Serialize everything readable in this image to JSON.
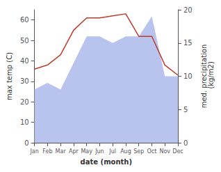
{
  "chart_data": {
    "type": "line",
    "categories": [
      "Jan",
      "Feb",
      "Mar",
      "Apr",
      "May",
      "Jun",
      "Jul",
      "Aug",
      "Sep",
      "Oct",
      "Nov",
      "Dec"
    ],
    "xlabel": "date (month)",
    "ylabel": "max temp (C)",
    "y2label": "med. precipitation\n (kg/m2)",
    "series": [
      {
        "type": "area",
        "axis": "y2",
        "color": "#b8c4ee",
        "values": [
          8,
          9,
          8,
          12,
          16,
          16,
          15,
          16,
          16,
          19,
          10,
          10
        ]
      },
      {
        "type": "line",
        "axis": "y",
        "color": "#c0392b",
        "values": [
          36,
          38,
          43,
          55,
          61,
          61,
          62,
          63,
          52,
          52,
          38,
          33
        ]
      }
    ],
    "ylim": [
      0,
      65
    ],
    "yticks": [
      0,
      10,
      20,
      30,
      40,
      50,
      60
    ],
    "y2lim": [
      0,
      20
    ],
    "y2ticks": [
      0,
      5,
      10,
      15,
      20
    ],
    "grid": false
  }
}
